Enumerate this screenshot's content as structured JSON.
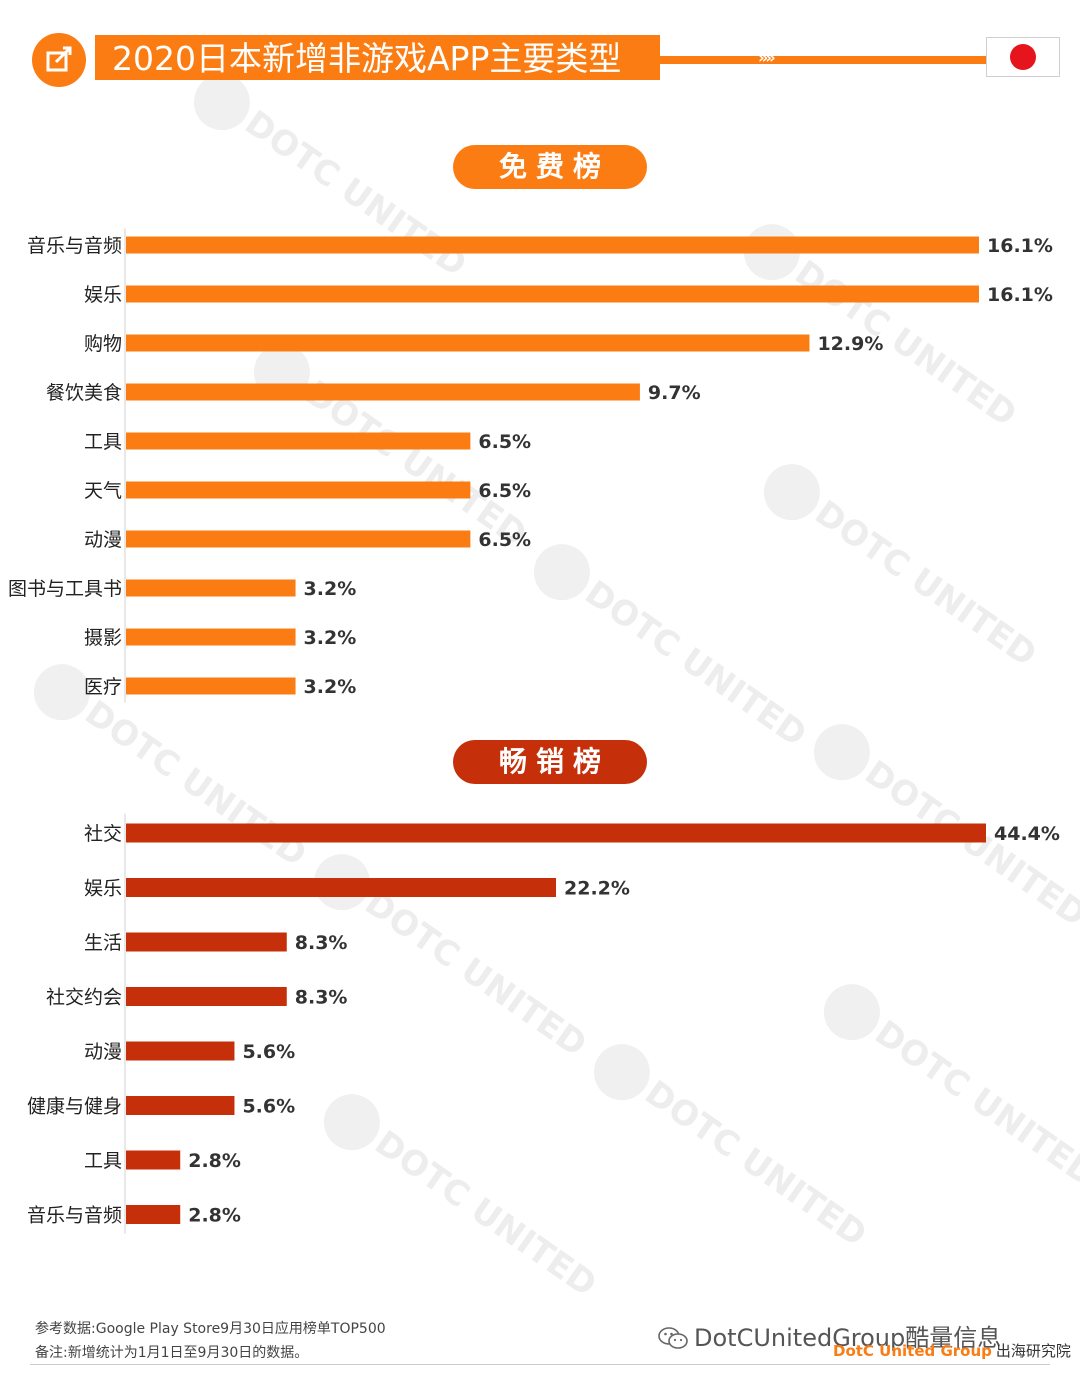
{
  "header": {
    "title": "2020日本新增非游戏APP主要类型",
    "chevrons": "»»",
    "icon": "share-arrow-icon",
    "flag": "japan-flag-icon"
  },
  "colors": {
    "free_bar": "#fb7c12",
    "grossing_bar": "#c5300a",
    "accent": "#fb7c12"
  },
  "chart_data": [
    {
      "type": "bar",
      "orientation": "horizontal",
      "title": "免费榜",
      "categories": [
        "音乐与音频",
        "娱乐",
        "购物",
        "餐饮美食",
        "工具",
        "天气",
        "动漫",
        "图书与工具书",
        "摄影",
        "医疗"
      ],
      "values": [
        16.1,
        16.1,
        12.9,
        9.7,
        6.5,
        6.5,
        6.5,
        3.2,
        3.2,
        3.2
      ],
      "value_labels": [
        "16.1%",
        "16.1%",
        "12.9%",
        "9.7%",
        "6.5%",
        "6.5%",
        "6.5%",
        "3.2%",
        "3.2%",
        "3.2%"
      ],
      "unit": "%"
    },
    {
      "type": "bar",
      "orientation": "horizontal",
      "title": "畅销榜",
      "categories": [
        "社交",
        "娱乐",
        "生活",
        "社交约会",
        "动漫",
        "健康与健身",
        "工具",
        "音乐与音频"
      ],
      "values": [
        44.4,
        22.2,
        8.3,
        8.3,
        5.6,
        5.6,
        2.8,
        2.8
      ],
      "value_labels": [
        "44.4%",
        "22.2%",
        "8.3%",
        "8.3%",
        "5.6%",
        "5.6%",
        "2.8%",
        "2.8%"
      ],
      "unit": "%"
    }
  ],
  "footer": {
    "source": "参考数据:Google Play Store9月30日应用榜单TOP500",
    "note": "备注:新增统计为1月1日至9月30日的数据。",
    "wechat": "DotCUnitedGroup酷量信息",
    "brand_en": "DotC United Group",
    "brand_cn": "出海研究院"
  },
  "watermark": "DOTC UNITED"
}
